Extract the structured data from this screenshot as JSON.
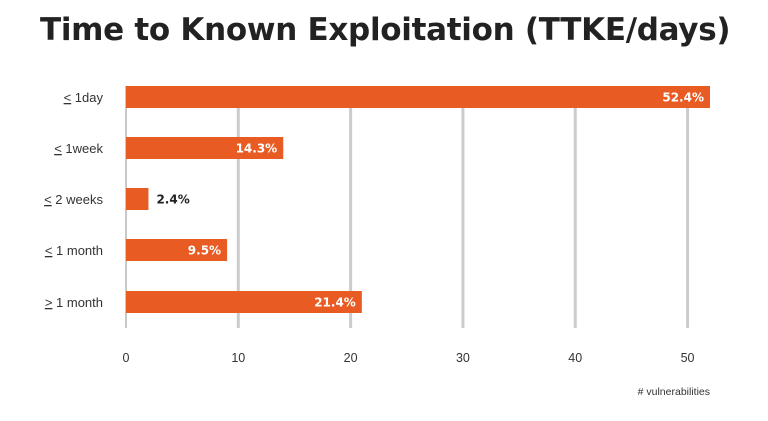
{
  "chart_data": {
    "type": "bar",
    "orientation": "horizontal",
    "title": "Time to Known Exploitation (TTKE/days)",
    "xlabel": "# vulnerabilities",
    "ylabel": "",
    "categories": [
      "< 1day",
      "< 1week",
      "< 2 weeks",
      "< 1 month",
      "> 1 month"
    ],
    "underlined_prefix": true,
    "values": [
      52,
      14,
      2,
      9,
      21
    ],
    "data_labels": [
      "52.4%",
      "14.3%",
      "2.4%",
      "9.5%",
      "21.4%"
    ],
    "xlim": [
      0,
      52
    ],
    "xticks": [
      0,
      10,
      20,
      30,
      40,
      50
    ],
    "grid": "vertical",
    "legend": "none",
    "bar_color": "#E85C24"
  }
}
